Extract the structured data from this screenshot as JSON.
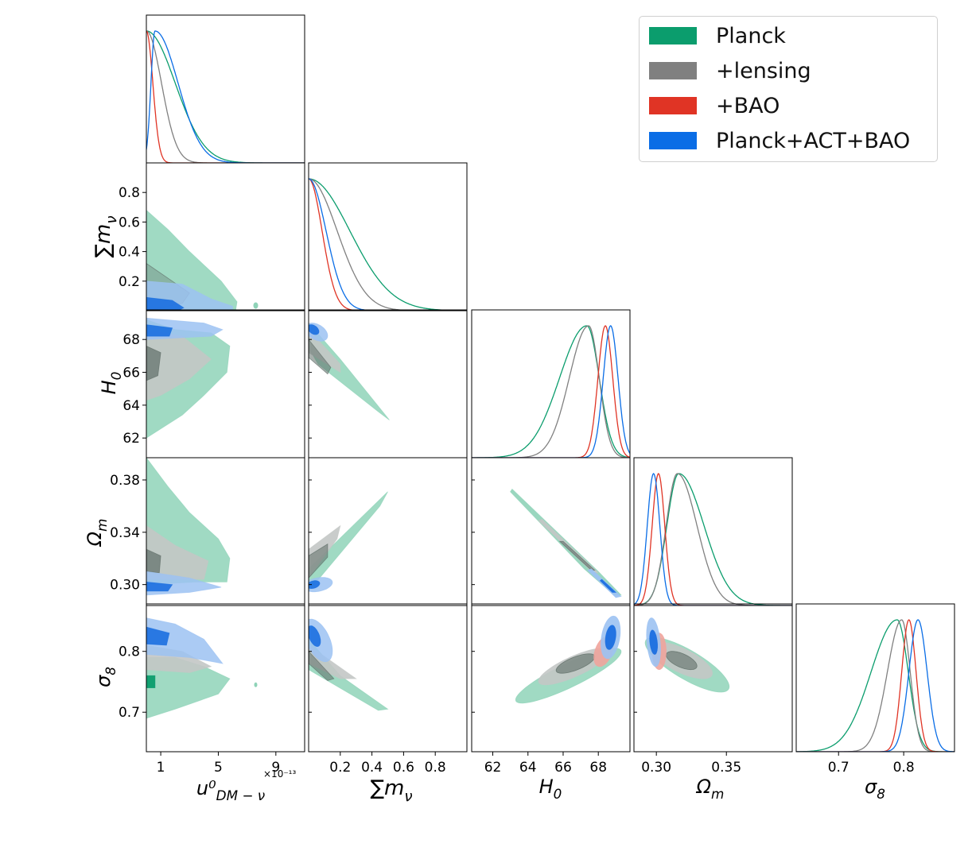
{
  "legend": {
    "entries": [
      {
        "label": "Planck",
        "color": "#0b9d6d"
      },
      {
        "label": "+lensing",
        "color": "#808080"
      },
      {
        "label": "+BAO",
        "color": "#e03425"
      },
      {
        "label": "Planck+ACT+BAO",
        "color": "#0a6de6"
      }
    ]
  },
  "chart_data": {
    "type": "triangle",
    "parameters": [
      {
        "name": "u_DM-nu",
        "label": "u⁰",
        "sublabel": "DM − ν",
        "multiplier": "×10⁻¹³",
        "range": [
          0,
          11
        ],
        "ticks": [
          1,
          5,
          9
        ],
        "tick_labels": [
          "1",
          "5",
          "9"
        ]
      },
      {
        "name": "sum_m_nu",
        "label": "∑m",
        "sublabel": "ν",
        "range": [
          0,
          1.0
        ],
        "ticks": [
          0.2,
          0.4,
          0.6,
          0.8
        ],
        "tick_labels": [
          "0.2",
          "0.4",
          "0.6",
          "0.8"
        ]
      },
      {
        "name": "H0",
        "label": "H",
        "sublabel": "0",
        "range": [
          60.8,
          69.8
        ],
        "ticks": [
          62,
          64,
          66,
          68
        ],
        "tick_labels": [
          "62",
          "64",
          "66",
          "68"
        ]
      },
      {
        "name": "Omega_m",
        "label": "Ω",
        "sublabel": "m",
        "range": [
          0.284,
          0.397
        ],
        "ticks": [
          0.3,
          0.34,
          0.38
        ],
        "tick_labels": [
          "0.30",
          "0.34",
          "0.38"
        ],
        "xticks": [
          0.3,
          0.35
        ],
        "xtick_labels": [
          "0.30",
          "0.35"
        ]
      },
      {
        "name": "sigma8",
        "label": "σ",
        "sublabel": "8",
        "range": [
          0.635,
          0.878
        ],
        "ticks": [
          0.7,
          0.8
        ],
        "tick_labels": [
          "0.7",
          "0.8"
        ]
      }
    ],
    "series": [
      {
        "name": "Planck",
        "color": "#0b9d6d",
        "marginals": [
          {
            "type": "halfnorm",
            "scale": 2.0
          },
          {
            "type": "halfnorm",
            "scale": 0.26
          },
          {
            "type": "skewnorm",
            "mode": 67.35,
            "left_sd": 1.55,
            "right_sd": 0.7
          },
          {
            "type": "skewnorm",
            "mode": 0.316,
            "left_sd": 0.0085,
            "right_sd": 0.018
          },
          {
            "type": "skewnorm",
            "mode": 0.79,
            "left_sd": 0.04,
            "right_sd": 0.017
          }
        ]
      },
      {
        "name": "+lensing",
        "color": "#808080",
        "marginals": [
          {
            "type": "halfnorm",
            "scale": 1.05
          },
          {
            "type": "halfnorm",
            "scale": 0.18
          },
          {
            "type": "skewnorm",
            "mode": 67.45,
            "left_sd": 1.1,
            "right_sd": 0.6
          },
          {
            "type": "skewnorm",
            "mode": 0.315,
            "left_sd": 0.008,
            "right_sd": 0.014
          },
          {
            "type": "skewnorm",
            "mode": 0.797,
            "left_sd": 0.022,
            "right_sd": 0.013
          }
        ]
      },
      {
        "name": "+BAO",
        "color": "#e03425",
        "marginals": [
          {
            "type": "halfnorm",
            "scale": 0.45
          },
          {
            "type": "halfnorm",
            "scale": 0.085
          },
          {
            "type": "skewnorm",
            "mode": 68.4,
            "left_sd": 0.42,
            "right_sd": 0.42
          },
          {
            "type": "skewnorm",
            "mode": 0.3015,
            "left_sd": 0.0045,
            "right_sd": 0.0045
          },
          {
            "type": "skewnorm",
            "mode": 0.808,
            "left_sd": 0.011,
            "right_sd": 0.011
          }
        ]
      },
      {
        "name": "Planck+ACT+BAO",
        "color": "#0a6de6",
        "marginals": [
          {
            "type": "peak",
            "mode": 0.6,
            "left_sd": 0.28,
            "right_sd": 1.6
          },
          {
            "type": "halfnorm",
            "scale": 0.11
          },
          {
            "type": "skewnorm",
            "mode": 68.7,
            "left_sd": 0.42,
            "right_sd": 0.42
          },
          {
            "type": "skewnorm",
            "mode": 0.298,
            "left_sd": 0.0045,
            "right_sd": 0.0045
          },
          {
            "type": "skewnorm",
            "mode": 0.822,
            "left_sd": 0.014,
            "right_sd": 0.014
          }
        ]
      }
    ],
    "contours_2d": [
      {
        "series": "Planck",
        "x": "sum_m_nu",
        "y": "H0",
        "outer": [
          [
            0.0,
            69.0
          ],
          [
            0.2,
            66.8
          ],
          [
            0.51,
            63.1
          ],
          [
            0.44,
            63.6
          ],
          [
            0.06,
            66.5
          ],
          [
            0.0,
            67.5
          ]
        ],
        "inner": [
          [
            0.0,
            68.0
          ],
          [
            0.14,
            66.3
          ],
          [
            0.12,
            65.9
          ],
          [
            0.0,
            66.9
          ]
        ]
      },
      {
        "series": "Planck",
        "x": "sum_m_nu",
        "y": "Omega_m",
        "outer": [
          [
            0.0,
            0.312
          ],
          [
            0.5,
            0.371
          ],
          [
            0.45,
            0.36
          ],
          [
            0.0,
            0.295
          ]
        ],
        "inner": [
          [
            0.0,
            0.322
          ],
          [
            0.12,
            0.331
          ],
          [
            0.12,
            0.321
          ],
          [
            0.0,
            0.305
          ]
        ]
      },
      {
        "series": "Planck",
        "x": "sum_m_nu",
        "y": "sigma8",
        "outer": [
          [
            0.0,
            0.82
          ],
          [
            0.2,
            0.76
          ],
          [
            0.5,
            0.705
          ],
          [
            0.44,
            0.703
          ],
          [
            0.0,
            0.77
          ]
        ],
        "inner": [
          [
            0.0,
            0.8
          ],
          [
            0.16,
            0.755
          ],
          [
            0.12,
            0.752
          ],
          [
            0.0,
            0.78
          ]
        ]
      }
    ],
    "heights": "normalized per series; marginal y-axes carry no ticks"
  }
}
